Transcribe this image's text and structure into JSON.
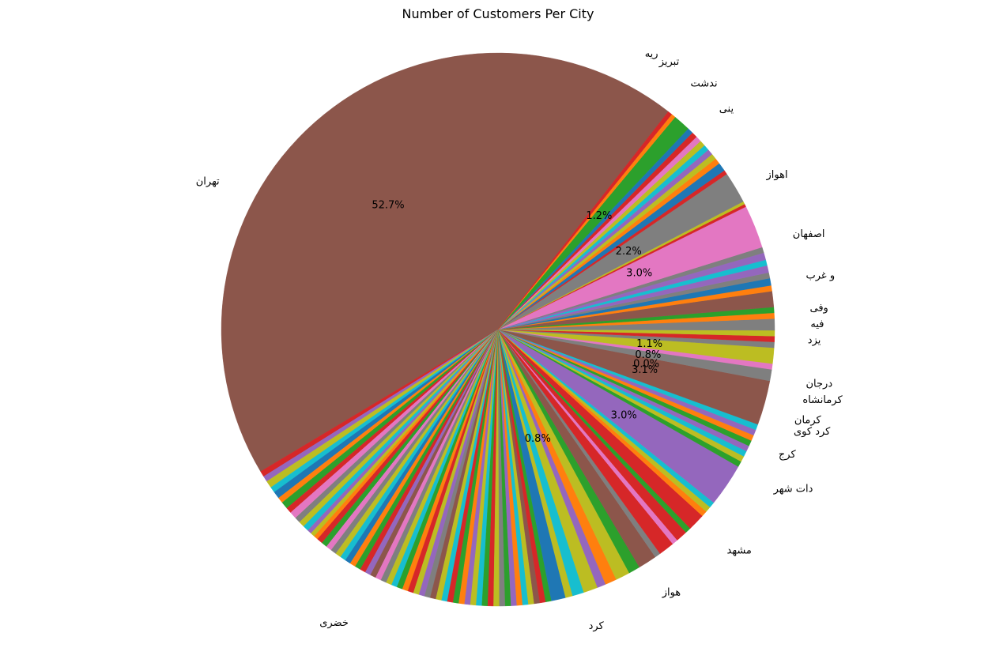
{
  "chart_data": {
    "type": "pie",
    "title": "Number of Customers Per City",
    "start_angle_deg": 52,
    "direction": "counterclockwise",
    "slices": [
      {
        "label": "تهران",
        "value": 52.7,
        "color": "#8c564b",
        "pct_label": "52.7%"
      },
      {
        "label": "",
        "value": 0.4,
        "color": "#d62728"
      },
      {
        "label": "",
        "value": 0.4,
        "color": "#9467bd"
      },
      {
        "label": "",
        "value": 0.5,
        "color": "#bcbd22"
      },
      {
        "label": "",
        "value": 0.4,
        "color": "#17becf"
      },
      {
        "label": "",
        "value": 0.5,
        "color": "#1f77b4"
      },
      {
        "label": "",
        "value": 0.4,
        "color": "#ff7f0e"
      },
      {
        "label": "",
        "value": 0.5,
        "color": "#2ca02c"
      },
      {
        "label": "",
        "value": 0.4,
        "color": "#d62728"
      },
      {
        "label": "",
        "value": 0.5,
        "color": "#e377c2"
      },
      {
        "label": "",
        "value": 0.4,
        "color": "#7f7f7f"
      },
      {
        "label": "",
        "value": 0.4,
        "color": "#bcbd22"
      },
      {
        "label": "",
        "value": 0.4,
        "color": "#17becf"
      },
      {
        "label": "",
        "value": 0.3,
        "color": "#9467bd"
      },
      {
        "label": "",
        "value": 0.3,
        "color": "#bcbd22"
      },
      {
        "label": "",
        "value": 0.3,
        "color": "#ff7f0e"
      },
      {
        "label": "",
        "value": 0.4,
        "color": "#d62728"
      },
      {
        "label": "",
        "value": 0.4,
        "color": "#2ca02c"
      },
      {
        "label": "",
        "value": 0.4,
        "color": "#e377c2"
      },
      {
        "label": "",
        "value": 0.4,
        "color": "#7f7f7f"
      },
      {
        "label": "",
        "value": 0.4,
        "color": "#bcbd22"
      },
      {
        "label": "",
        "value": 0.4,
        "color": "#17becf"
      },
      {
        "label": "",
        "value": 0.4,
        "color": "#1f77b4"
      },
      {
        "label": "",
        "value": 0.4,
        "color": "#ff7f0e"
      },
      {
        "label": "",
        "value": 0.4,
        "color": "#2ca02c"
      },
      {
        "label": "",
        "value": 0.4,
        "color": "#d62728"
      },
      {
        "label": "",
        "value": 0.4,
        "color": "#9467bd"
      },
      {
        "label": "",
        "value": 0.4,
        "color": "#8c564b"
      },
      {
        "label": "",
        "value": 0.4,
        "color": "#e377c2"
      },
      {
        "label": "",
        "value": 0.4,
        "color": "#7f7f7f"
      },
      {
        "label": "",
        "value": 0.4,
        "color": "#bcbd22"
      },
      {
        "label": "",
        "value": 0.4,
        "color": "#17becf"
      },
      {
        "label": "",
        "value": 0.4,
        "color": "#2ca02c"
      },
      {
        "label": "",
        "value": 0.4,
        "color": "#ff7f0e"
      },
      {
        "label": "",
        "value": 0.4,
        "color": "#d62728"
      },
      {
        "label": "",
        "value": 0.4,
        "color": "#bcbd22"
      },
      {
        "label": "",
        "value": 0.4,
        "color": "#9467bd"
      },
      {
        "label": "",
        "value": 0.4,
        "color": "#7f7f7f"
      },
      {
        "label": "",
        "value": 0.4,
        "color": "#8c564b"
      },
      {
        "label": "",
        "value": 0.4,
        "color": "#bcbd22"
      },
      {
        "label": "",
        "value": 0.4,
        "color": "#17becf"
      },
      {
        "label": "",
        "value": 0.4,
        "color": "#d62728"
      },
      {
        "label": "",
        "value": 0.4,
        "color": "#2ca02c"
      },
      {
        "label": "",
        "value": 0.4,
        "color": "#ff7f0e"
      },
      {
        "label": "",
        "value": 0.4,
        "color": "#9467bd"
      },
      {
        "label": "",
        "value": 0.4,
        "color": "#bcbd22"
      },
      {
        "label": "",
        "value": 0.4,
        "color": "#17becf"
      },
      {
        "label": "",
        "value": 0.4,
        "color": "#2ca02c"
      },
      {
        "label": "",
        "value": 0.4,
        "color": "#d62728"
      },
      {
        "label": "",
        "value": 0.4,
        "color": "#bcbd22"
      },
      {
        "label": "",
        "value": 0.4,
        "color": "#7f7f7f"
      },
      {
        "label": "",
        "value": 0.4,
        "color": "#2ca02c"
      },
      {
        "label": "",
        "value": 0.4,
        "color": "#9467bd"
      },
      {
        "label": "",
        "value": 0.4,
        "color": "#ff7f0e"
      },
      {
        "label": "",
        "value": 0.4,
        "color": "#17becf"
      },
      {
        "label": "",
        "value": 0.4,
        "color": "#bcbd22"
      },
      {
        "label": "",
        "value": 0.4,
        "color": "#8c564b"
      },
      {
        "label": "",
        "value": 0.4,
        "color": "#d62728"
      },
      {
        "label": "",
        "value": 0.4,
        "color": "#2ca02c"
      },
      {
        "label": "",
        "value": 1.0,
        "color": "#1f77b4"
      },
      {
        "label": "",
        "value": 0.5,
        "color": "#bcbd22"
      },
      {
        "label": "",
        "value": 0.8,
        "color": "#17becf"
      },
      {
        "label": "",
        "value": 1.0,
        "color": "#bcbd22"
      },
      {
        "label": "",
        "value": 0.6,
        "color": "#9467bd"
      },
      {
        "label": "",
        "value": 0.8,
        "color": "#ff7f0e"
      },
      {
        "label": "",
        "value": 1.0,
        "color": "#bcbd22"
      },
      {
        "label": "",
        "value": 0.8,
        "color": "#2ca02c"
      },
      {
        "label": "",
        "value": 1.3,
        "color": "#8c564b"
      },
      {
        "label": "",
        "value": 0.4,
        "color": "#7f7f7f"
      },
      {
        "label": "",
        "value": 1.1,
        "color": "#d62728"
      },
      {
        "label": "",
        "value": 0.4,
        "color": "#e377c2"
      },
      {
        "label": "",
        "value": 0.8,
        "color": "#d62728"
      },
      {
        "label": "",
        "value": 0.4,
        "color": "#2ca02c"
      },
      {
        "label": "",
        "value": 1.2,
        "color": "#d62728"
      },
      {
        "label": "",
        "value": 0.4,
        "color": "#ff7f0e"
      },
      {
        "label": "",
        "value": 0.4,
        "color": "#bcbd22"
      },
      {
        "label": "",
        "value": 0.4,
        "color": "#17becf"
      },
      {
        "label": "مشهد",
        "value": 3.0,
        "color": "#9467bd",
        "pct_label": "3.0%"
      },
      {
        "label": "",
        "value": 0.4,
        "color": "#2ca02c"
      },
      {
        "label": "",
        "value": 0.4,
        "color": "#bcbd22"
      },
      {
        "label": "",
        "value": 0.4,
        "color": "#17becf"
      },
      {
        "label": "",
        "value": 0.4,
        "color": "#9467bd"
      },
      {
        "label": "",
        "value": 0.4,
        "color": "#2ca02c"
      },
      {
        "label": "",
        "value": 0.4,
        "color": "#ff7f0e"
      },
      {
        "label": "",
        "value": 0.4,
        "color": "#9467bd"
      },
      {
        "label": "",
        "value": 0.4,
        "color": "#17becf"
      },
      {
        "label": "کرج",
        "value": 3.1,
        "color": "#8c564b",
        "pct_label": "3.1%"
      },
      {
        "label": "کرد کوی",
        "value": 0.8,
        "color": "#7f7f7f",
        "pct_label": "0.8%"
      },
      {
        "label": "کرمان",
        "value": 0.4,
        "color": "#e377c2"
      },
      {
        "label": "کرمانشاه",
        "value": 1.1,
        "color": "#bcbd22",
        "pct_label": "1.1%"
      },
      {
        "label": "",
        "value": 0.4,
        "color": "#7f7f7f"
      },
      {
        "label": "",
        "value": 0.4,
        "color": "#d62728"
      },
      {
        "label": "",
        "value": 0.4,
        "color": "#bcbd22"
      },
      {
        "label": "",
        "value": 0.8,
        "color": "#7f7f7f"
      },
      {
        "label": "",
        "value": 0.4,
        "color": "#ff7f0e"
      },
      {
        "label": "",
        "value": 0.4,
        "color": "#2ca02c"
      },
      {
        "label": "یزد",
        "value": 1.1,
        "color": "#8c564b"
      },
      {
        "label": "",
        "value": 0.4,
        "color": "#ff7f0e"
      },
      {
        "label": "",
        "value": 0.5,
        "color": "#1f77b4"
      },
      {
        "label": "",
        "value": 0.4,
        "color": "#7f7f7f"
      },
      {
        "label": "",
        "value": 0.5,
        "color": "#9467bd"
      },
      {
        "label": "",
        "value": 0.4,
        "color": "#17becf"
      },
      {
        "label": "",
        "value": 0.5,
        "color": "#9467bd"
      },
      {
        "label": "",
        "value": 0.4,
        "color": "#7f7f7f"
      },
      {
        "label": "اصفهان",
        "value": 3.0,
        "color": "#e377c2",
        "pct_label": "3.0%"
      },
      {
        "label": "",
        "value": 0.2,
        "color": "#d62728"
      },
      {
        "label": "",
        "value": 0.2,
        "color": "#bcbd22"
      },
      {
        "label": "اهواز",
        "value": 2.2,
        "color": "#7f7f7f",
        "pct_label": "2.2%"
      },
      {
        "label": "",
        "value": 0.3,
        "color": "#d62728"
      },
      {
        "label": "",
        "value": 0.6,
        "color": "#1f77b4"
      },
      {
        "label": "",
        "value": 0.4,
        "color": "#ff7f0e"
      },
      {
        "label": "",
        "value": 0.4,
        "color": "#bcbd22"
      },
      {
        "label": "",
        "value": 0.4,
        "color": "#9467bd"
      },
      {
        "label": "",
        "value": 0.4,
        "color": "#17becf"
      },
      {
        "label": "",
        "value": 0.4,
        "color": "#bcbd22"
      },
      {
        "label": "",
        "value": 0.4,
        "color": "#e377c2"
      },
      {
        "label": "",
        "value": 0.4,
        "color": "#d62728"
      },
      {
        "label": "",
        "value": 0.4,
        "color": "#1f77b4"
      },
      {
        "label": "تبریز",
        "value": 1.2,
        "color": "#2ca02c",
        "pct_label": "1.2%"
      },
      {
        "label": "",
        "value": 0.3,
        "color": "#ff7f0e"
      },
      {
        "label": "",
        "value": 0.3,
        "color": "#d62728"
      }
    ],
    "outer_labels": [
      {
        "text": "تهران",
        "angle": 152,
        "r": 1.14
      },
      {
        "text": "تبریز",
        "angle": 59,
        "r": 1.13
      },
      {
        "text": "اهواز",
        "angle": 30,
        "r": 1.12
      },
      {
        "text": "اصفهان",
        "angle": 18,
        "r": 1.12
      },
      {
        "text": "یزد",
        "angle": -2,
        "r": 1.12
      },
      {
        "text": "کرمانشاه",
        "angle": -13,
        "r": 1.13
      },
      {
        "text": "کرمان",
        "angle": -17,
        "r": 1.12
      },
      {
        "text": "کرد کوی",
        "angle": -19,
        "r": 1.13
      },
      {
        "text": "کرج",
        "angle": -24,
        "r": 1.11
      },
      {
        "text": "مشهد",
        "angle": -44,
        "r": 1.15
      },
      {
        "text": "خضری",
        "angle": -117,
        "r": 1.19
      },
      {
        "text": "ریه",
        "angle": 62,
        "r": 1.13
      },
      {
        "text": "ندشت",
        "angle": 52,
        "r": 1.13
      },
      {
        "text": "ینی",
        "angle": 45,
        "r": 1.13
      },
      {
        "text": "و غرب",
        "angle": 10,
        "r": 1.13
      },
      {
        "text": "وفی",
        "angle": 4,
        "r": 1.13
      },
      {
        "text": "فیه",
        "angle": 1,
        "r": 1.13
      },
      {
        "text": "درجان",
        "angle": -10,
        "r": 1.13
      },
      {
        "text": "دات شهر",
        "angle": -30,
        "r": 1.15
      },
      {
        "text": "هواز",
        "angle": -58,
        "r": 1.12
      },
      {
        "text": "کرد",
        "angle": -73,
        "r": 1.12
      }
    ],
    "inner_pct_labels": [
      {
        "text": "0.0%",
        "angle": -13,
        "r": 0.55
      },
      {
        "text": "0.8%",
        "angle": -70,
        "r": 0.42
      }
    ]
  }
}
